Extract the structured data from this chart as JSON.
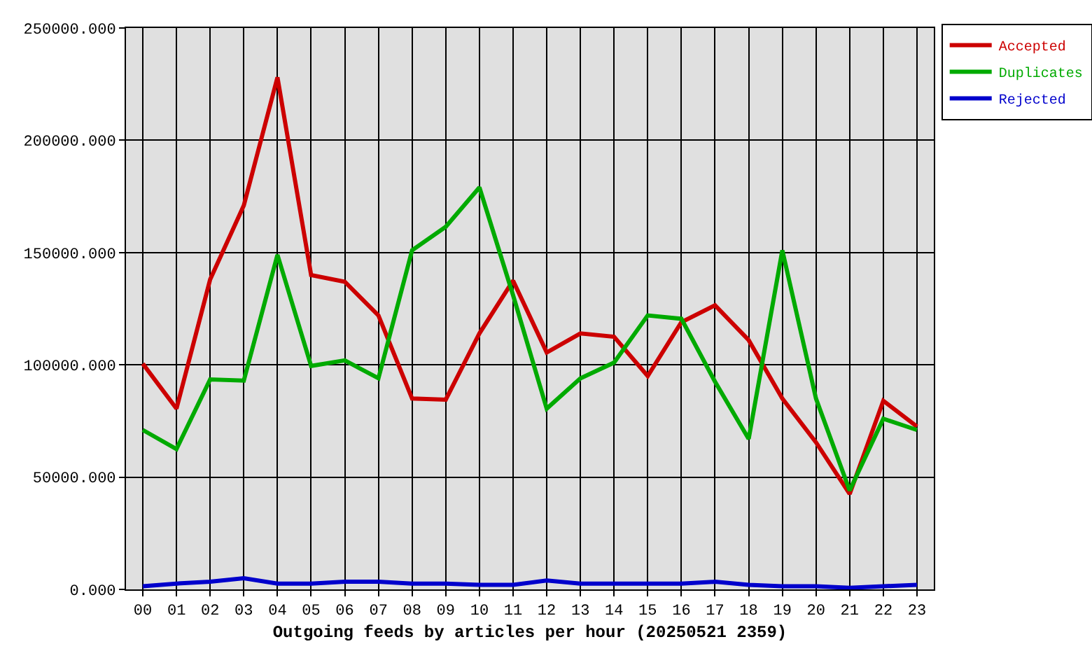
{
  "chart_data": {
    "type": "line",
    "xlabel": "Outgoing feeds by articles per hour (20250521 2359)",
    "categories": [
      "00",
      "01",
      "02",
      "03",
      "04",
      "05",
      "06",
      "07",
      "08",
      "09",
      "10",
      "11",
      "12",
      "13",
      "14",
      "15",
      "16",
      "17",
      "18",
      "19",
      "20",
      "21",
      "22",
      "23"
    ],
    "series": [
      {
        "name": "Accepted",
        "color": "#cc0000",
        "values": [
          100500,
          80500,
          138000,
          171000,
          228000,
          140000,
          137000,
          122000,
          85000,
          84500,
          114000,
          137500,
          105500,
          114000,
          112500,
          95000,
          119000,
          126500,
          111000,
          85000,
          65500,
          42500,
          84000,
          72500
        ]
      },
      {
        "name": "Duplicates",
        "color": "#00aa00",
        "values": [
          71000,
          62500,
          93500,
          93000,
          149000,
          99500,
          102000,
          94000,
          151000,
          161500,
          179000,
          131000,
          80500,
          94000,
          101000,
          122000,
          120500,
          92500,
          67000,
          151000,
          85000,
          44000,
          76000,
          71000
        ]
      },
      {
        "name": "Rejected",
        "color": "#0000cc",
        "values": [
          1400,
          2600,
          3400,
          5000,
          2600,
          2600,
          3400,
          3400,
          2600,
          2600,
          2000,
          2000,
          4000,
          2600,
          2600,
          2600,
          2600,
          3400,
          2000,
          1400,
          1400,
          700,
          1400,
          2000
        ]
      }
    ],
    "ylim": [
      0,
      250000
    ],
    "yticks": [
      {
        "value": 0,
        "label": "0.000"
      },
      {
        "value": 50000,
        "label": "50000.000"
      },
      {
        "value": 100000,
        "label": "100000.000"
      },
      {
        "value": 150000,
        "label": "150000.000"
      },
      {
        "value": 200000,
        "label": "200000.000"
      },
      {
        "value": 250000,
        "label": "250000.000"
      }
    ],
    "grid": true,
    "legend": "top right"
  }
}
